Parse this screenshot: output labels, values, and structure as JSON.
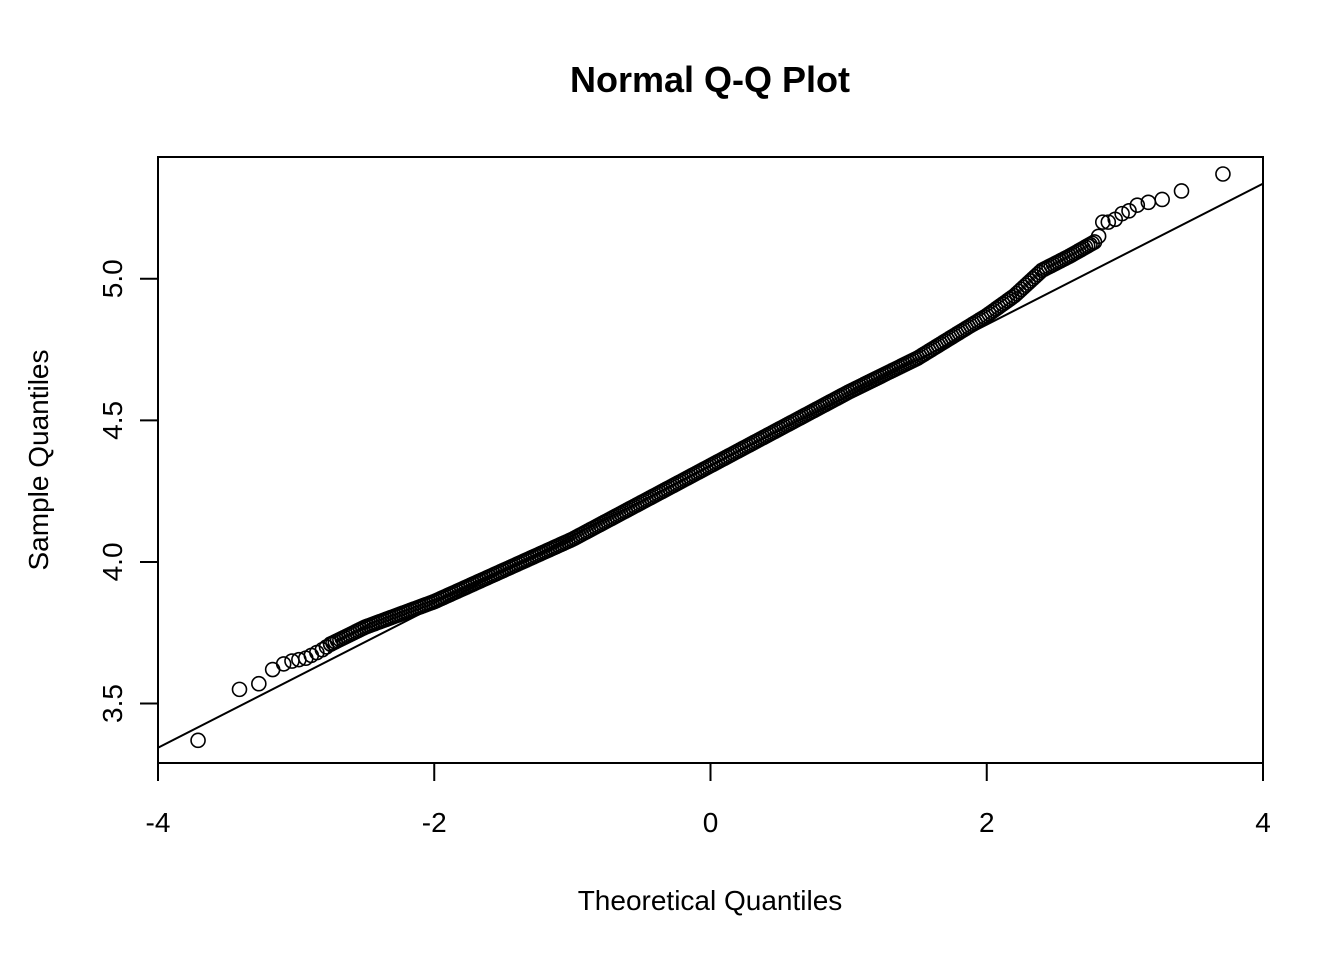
{
  "chart_data": {
    "type": "scatter",
    "title": "Normal Q-Q Plot",
    "xlabel": "Theoretical Quantiles",
    "ylabel": "Sample Quantiles",
    "xlim": [
      -4,
      4
    ],
    "ylim": [
      3.29,
      5.43
    ],
    "x_ticks": [
      "-4",
      "-2",
      "0",
      "2",
      "4"
    ],
    "y_ticks": [
      "3.5",
      "4.0",
      "4.5",
      "5.0"
    ],
    "grid": false,
    "legend": "none",
    "marker": "open-circle",
    "reference_line": {
      "intercept": 4.34,
      "slope": 0.249
    },
    "tail_points": [
      {
        "x": -3.71,
        "y": 3.37
      },
      {
        "x": -3.41,
        "y": 3.55
      },
      {
        "x": -3.27,
        "y": 3.57
      },
      {
        "x": -3.17,
        "y": 3.62
      },
      {
        "x": -3.09,
        "y": 3.64
      },
      {
        "x": -3.03,
        "y": 3.65
      },
      {
        "x": -2.98,
        "y": 3.655
      },
      {
        "x": -2.93,
        "y": 3.66
      },
      {
        "x": -2.89,
        "y": 3.67
      },
      {
        "x": -2.85,
        "y": 3.68
      },
      {
        "x": -2.81,
        "y": 3.69
      },
      {
        "x": -2.78,
        "y": 3.7
      },
      {
        "x": -2.75,
        "y": 3.71
      },
      {
        "x": 2.78,
        "y": 5.13
      },
      {
        "x": 2.81,
        "y": 5.15
      },
      {
        "x": 2.84,
        "y": 5.2
      },
      {
        "x": 2.88,
        "y": 5.2
      },
      {
        "x": 2.93,
        "y": 5.21
      },
      {
        "x": 2.98,
        "y": 5.23
      },
      {
        "x": 3.03,
        "y": 5.24
      },
      {
        "x": 3.09,
        "y": 5.26
      },
      {
        "x": 3.17,
        "y": 5.27
      },
      {
        "x": 3.27,
        "y": 5.28
      },
      {
        "x": 3.41,
        "y": 5.31
      },
      {
        "x": 3.71,
        "y": 5.37
      }
    ],
    "body_curve": [
      {
        "x": -2.75,
        "y": 3.71
      },
      {
        "x": -2.5,
        "y": 3.77
      },
      {
        "x": -2.0,
        "y": 3.86
      },
      {
        "x": -1.5,
        "y": 3.97
      },
      {
        "x": -1.0,
        "y": 4.08
      },
      {
        "x": -0.5,
        "y": 4.21
      },
      {
        "x": 0.0,
        "y": 4.34
      },
      {
        "x": 0.5,
        "y": 4.47
      },
      {
        "x": 1.0,
        "y": 4.6
      },
      {
        "x": 1.5,
        "y": 4.72
      },
      {
        "x": 1.8,
        "y": 4.81
      },
      {
        "x": 2.0,
        "y": 4.87
      },
      {
        "x": 2.2,
        "y": 4.94
      },
      {
        "x": 2.4,
        "y": 5.03
      },
      {
        "x": 2.6,
        "y": 5.08
      },
      {
        "x": 2.78,
        "y": 5.13
      }
    ]
  }
}
